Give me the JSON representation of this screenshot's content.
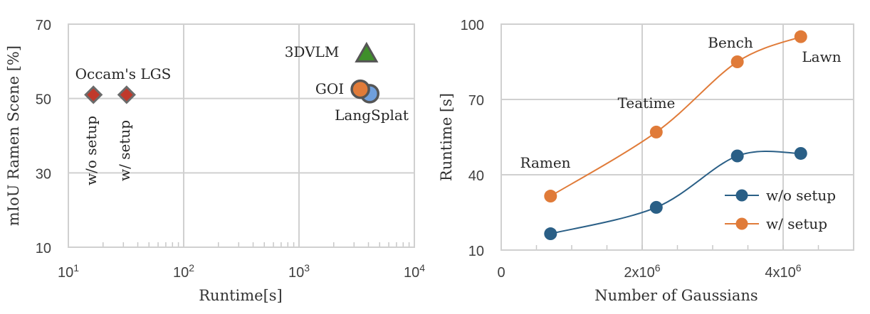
{
  "chart_data": [
    {
      "type": "scatter",
      "xlabel": "Runtime[s]",
      "ylabel": "mIoU Ramen Scene [%]",
      "xscale": "log",
      "xlim": [
        10,
        10000
      ],
      "ylim": [
        10,
        70
      ],
      "grid": true,
      "xticks": [
        {
          "base": "10",
          "exp": "1"
        },
        {
          "base": "10",
          "exp": "2"
        },
        {
          "base": "10",
          "exp": "3"
        },
        {
          "base": "10",
          "exp": "4"
        }
      ],
      "yticks": [
        "10",
        "30",
        "50",
        "70"
      ],
      "points": [
        {
          "x": 16.5,
          "y": 51,
          "marker": "diamond",
          "color": "#c0392b",
          "edge": "#6b6b6b"
        },
        {
          "x": 32,
          "y": 51,
          "marker": "diamond",
          "color": "#c0392b",
          "edge": "#6b6b6b"
        },
        {
          "x": 3850,
          "y": 62,
          "marker": "triangle",
          "color": "#3f8f2a",
          "edge": "#555555"
        },
        {
          "x": 4100,
          "y": 51.3,
          "marker": "circle",
          "color": "#6f9fdc",
          "edge": "#555555"
        },
        {
          "x": 3400,
          "y": 52.5,
          "marker": "circle",
          "color": "#e07b39",
          "edge": "#555555"
        }
      ],
      "annotations": [
        "Occam's LGS",
        "w/o setup",
        "w/ setup",
        "3DVLM",
        "GOI",
        "LangSplat"
      ]
    },
    {
      "type": "line",
      "xlabel": "Number of Gaussians",
      "ylabel": "Runtime [s]",
      "xlim": [
        0,
        5000000
      ],
      "ylim": [
        10,
        100
      ],
      "grid": true,
      "xticks": [
        {
          "base": "0",
          "exp": ""
        },
        {
          "base": "2x10",
          "exp": "6"
        },
        {
          "base": "4x10",
          "exp": "6"
        }
      ],
      "yticks": [
        "10",
        "40",
        "70",
        "100"
      ],
      "legend": "right",
      "series": [
        {
          "name": "w/o setup",
          "color": "#2a5f86",
          "x": [
            700000,
            2200000,
            3350000,
            4250000
          ],
          "values": [
            16.5,
            27,
            47.5,
            48.5
          ]
        },
        {
          "name": "w/ setup",
          "color": "#e07b39",
          "x": [
            700000,
            2200000,
            3350000,
            4250000
          ],
          "values": [
            31.5,
            57,
            85,
            95
          ]
        }
      ],
      "annotations": [
        "Ramen",
        "Teatime",
        "Bench",
        "Lawn"
      ]
    }
  ]
}
